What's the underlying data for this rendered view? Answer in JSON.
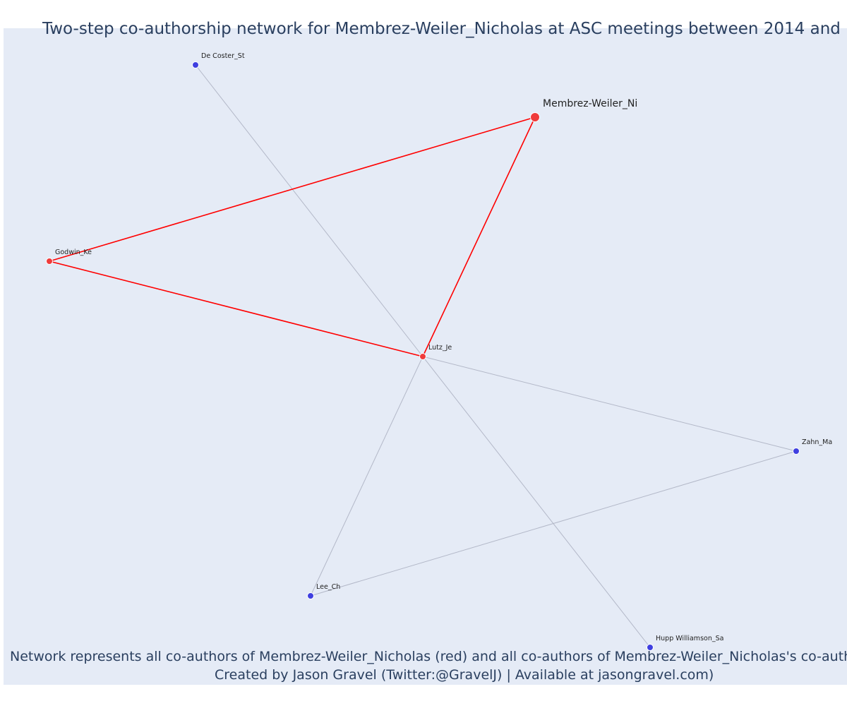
{
  "header": {
    "title": "Two-step co-authorship network for Membrez-Weiler_Nicholas at ASC meetings between 2014 and"
  },
  "footer": {
    "caption": "Network represents all co-authors of Membrez-Weiler_Nicholas (red) and all co-authors of Membrez-Weiler_Nicholas's co-autho",
    "credit": "Created by Jason Gravel (Twitter:@GravelJ) | Available at jasongravel.com)"
  },
  "colors": {
    "background": "#e5ebf6",
    "direct_coauthor": "#ef3b3b",
    "second_step": "#3f3fe0",
    "direct_edge": "#ff0000",
    "other_edge": "#b3b8c8",
    "title_text": "#2a3f5f"
  },
  "network": {
    "nodes": [
      {
        "id": "membrez",
        "label": "Membrez-Weiler_Ni",
        "group": "focal"
      },
      {
        "id": "destoster",
        "label": "De Coster_St",
        "group": "second-step"
      },
      {
        "id": "godwin",
        "label": "Godwin_Ke",
        "group": "direct"
      },
      {
        "id": "lutz",
        "label": "Lutz_Je",
        "group": "direct"
      },
      {
        "id": "zahn",
        "label": "Zahn_Ma",
        "group": "second-step"
      },
      {
        "id": "lee",
        "label": "Lee_Ch",
        "group": "second-step"
      },
      {
        "id": "hupp",
        "label": "Hupp Williamson_Sa",
        "group": "second-step"
      }
    ],
    "edges": [
      {
        "source": "membrez",
        "target": "godwin",
        "type": "direct"
      },
      {
        "source": "membrez",
        "target": "lutz",
        "type": "direct"
      },
      {
        "source": "godwin",
        "target": "lutz",
        "type": "direct"
      },
      {
        "source": "destoster",
        "target": "lutz",
        "type": "other"
      },
      {
        "source": "lutz",
        "target": "zahn",
        "type": "other"
      },
      {
        "source": "lutz",
        "target": "lee",
        "type": "other"
      },
      {
        "source": "lutz",
        "target": "hupp",
        "type": "other"
      },
      {
        "source": "lee",
        "target": "zahn",
        "type": "other"
      }
    ]
  }
}
